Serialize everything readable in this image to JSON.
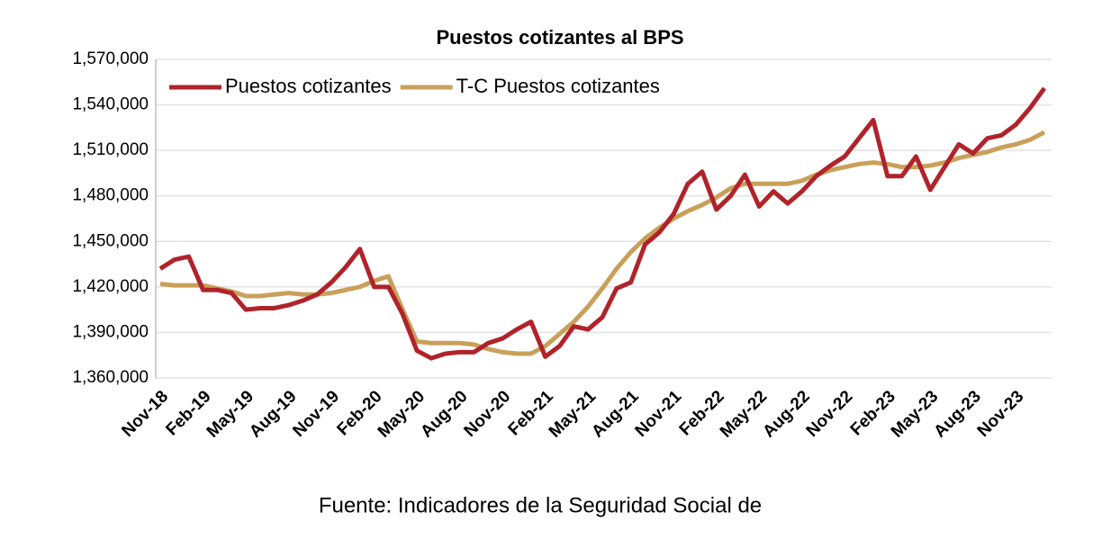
{
  "chart_data": {
    "type": "line",
    "title": "Puestos cotizantes al BPS",
    "footer": "Fuente: Indicadores de la Seguridad Social de",
    "categories": [
      "Nov-18",
      null,
      null,
      "Feb-19",
      null,
      null,
      "May-19",
      null,
      null,
      "Aug-19",
      null,
      null,
      "Nov-19",
      null,
      null,
      "Feb-20",
      null,
      null,
      "May-20",
      null,
      null,
      "Aug-20",
      null,
      null,
      "Nov-20",
      null,
      null,
      "Feb-21",
      null,
      null,
      "May-21",
      null,
      null,
      "Aug-21",
      null,
      null,
      "Nov-21",
      null,
      null,
      "Feb-22",
      null,
      null,
      "May-22",
      null,
      null,
      "Aug-22",
      null,
      null,
      "Nov-22",
      null,
      null,
      "Feb-23",
      null,
      null,
      "May-23",
      null,
      null,
      "Aug-23",
      null,
      null,
      "Nov-23",
      null,
      null
    ],
    "series": [
      {
        "name": "Puestos cotizantes",
        "color": "#b0232a",
        "values": [
          1432000,
          1438000,
          1440000,
          1418000,
          1418000,
          1416000,
          1405000,
          1406000,
          1406000,
          1408000,
          1411000,
          1415000,
          1423000,
          1433000,
          1445000,
          1420000,
          1420000,
          1402000,
          1378000,
          1373000,
          1376000,
          1377000,
          1377000,
          1383000,
          1386000,
          1392000,
          1397000,
          1374000,
          1381000,
          1394000,
          1392000,
          1400000,
          1419000,
          1423000,
          1448000,
          1456000,
          1468000,
          1488000,
          1496000,
          1471000,
          1480000,
          1494000,
          1473000,
          1483000,
          1475000,
          1483000,
          1493000,
          1500000,
          1506000,
          1518000,
          1530000,
          1493000,
          1493000,
          1506000,
          1484000,
          1499000,
          1514000,
          1508000,
          1518000,
          1520000,
          1527000,
          1538000,
          1551000
        ]
      },
      {
        "name": "T-C Puestos cotizantes",
        "color": "#c9a05a",
        "values": [
          1422000,
          1421000,
          1421000,
          1421000,
          1419000,
          1417000,
          1414000,
          1414000,
          1415000,
          1416000,
          1415000,
          1415000,
          1416000,
          1418000,
          1420000,
          1424000,
          1427000,
          1405000,
          1384000,
          1383000,
          1383000,
          1383000,
          1382000,
          1379000,
          1377000,
          1376000,
          1376000,
          1381000,
          1389000,
          1397000,
          1407000,
          1419000,
          1432000,
          1443000,
          1452000,
          1459000,
          1465000,
          1470000,
          1474000,
          1479000,
          1485000,
          1488000,
          1488000,
          1488000,
          1488000,
          1490000,
          1494000,
          1497000,
          1499000,
          1501000,
          1502000,
          1501000,
          1499000,
          1499000,
          1500000,
          1502000,
          1505000,
          1507000,
          1509000,
          1512000,
          1514000,
          1517000,
          1522000
        ]
      }
    ],
    "ylim": [
      1360000,
      1570000
    ],
    "yticks": [
      {
        "value": 1360000,
        "label": "1,360,000"
      },
      {
        "value": 1390000,
        "label": "1,390,000"
      },
      {
        "value": 1420000,
        "label": "1,420,000"
      },
      {
        "value": 1450000,
        "label": "1,450,000"
      },
      {
        "value": 1480000,
        "label": "1,480,000"
      },
      {
        "value": 1510000,
        "label": "1,510,000"
      },
      {
        "value": 1540000,
        "label": "1,540,000"
      },
      {
        "value": 1570000,
        "label": "1,570,000"
      }
    ],
    "grid": true,
    "legend": "top-left"
  }
}
